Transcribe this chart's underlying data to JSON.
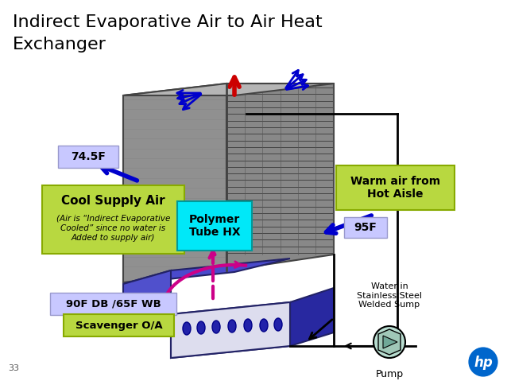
{
  "title_line1": "Indirect Evaporative Air to Air Heat",
  "title_line2": "Exchanger",
  "background_color": "#ffffff",
  "label_74F": "74.5F",
  "label_95F": "95F",
  "label_90F": "90F DB /65F WB",
  "label_scavenger": "Scavenger O/A",
  "label_polymer": "Polymer\nTube HX",
  "label_cool_air": "Cool Supply Air",
  "label_cool_air_sub": "(Air is “Indirect Evaporative\nCooled” since no water is\nAdded to supply air)",
  "label_warm_air": "Warm air from\nHot Aisle",
  "label_water": "Water in\nStainless Steel\nWelded Sump",
  "label_pump": "Pump",
  "label_page": "33",
  "color_green": "#b8d840",
  "color_lavender": "#c8c8ff",
  "color_cyan": "#00e8f8",
  "color_blue_arrow": "#0000cc",
  "color_red_arrow": "#cc0000",
  "color_pink_arrow": "#cc0088",
  "color_black": "#000000",
  "color_white": "#ffffff",
  "color_hp_blue": "#0066cc"
}
